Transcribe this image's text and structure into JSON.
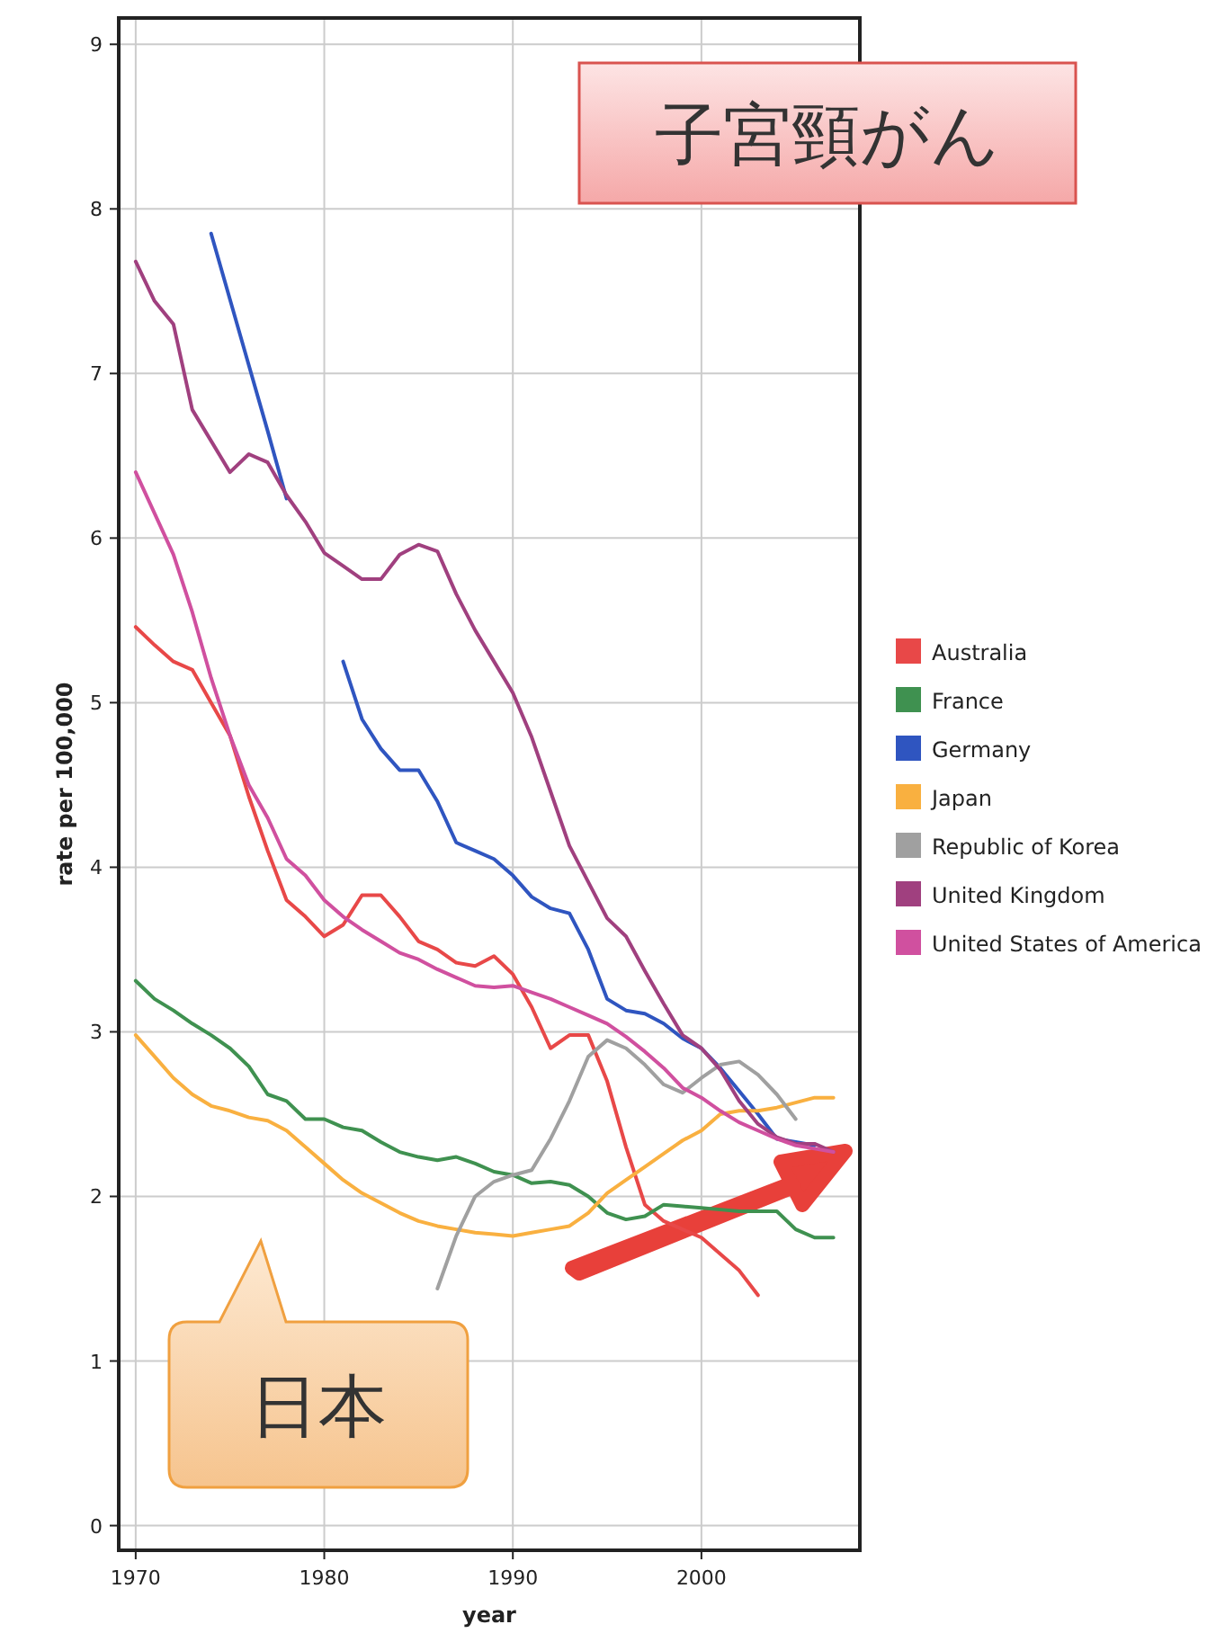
{
  "chart_data": {
    "type": "line",
    "title": "子宮頸がん",
    "xlabel": "year",
    "ylabel": "rate per 100,000",
    "x": [
      1970,
      1971,
      1972,
      1973,
      1974,
      1975,
      1976,
      1977,
      1978,
      1979,
      1980,
      1981,
      1982,
      1983,
      1984,
      1985,
      1986,
      1987,
      1988,
      1989,
      1990,
      1991,
      1992,
      1993,
      1994,
      1995,
      1996,
      1997,
      1998,
      1999,
      2000,
      2001,
      2002,
      2003,
      2004,
      2005,
      2006,
      2007
    ],
    "xlim": [
      1969.1,
      2008.4
    ],
    "xticks": [
      1970,
      1980,
      1990,
      2000
    ],
    "ylim": [
      -0.15,
      9.16
    ],
    "yticks": [
      0,
      1,
      2,
      3,
      4,
      5,
      6,
      7,
      8,
      9
    ],
    "grid": true,
    "legend": "right",
    "line_style": "solid",
    "marker": "none",
    "series": [
      {
        "name": "Australia",
        "color": "#e84848",
        "values": [
          5.46,
          5.35,
          5.25,
          5.2,
          5.0,
          4.8,
          4.43,
          4.1,
          3.8,
          3.7,
          3.58,
          3.65,
          3.83,
          3.83,
          3.7,
          3.55,
          3.5,
          3.42,
          3.4,
          3.46,
          3.35,
          3.15,
          2.9,
          2.98,
          2.98,
          2.7,
          2.3,
          1.95,
          1.85,
          1.8,
          1.75,
          1.65,
          1.55,
          1.4,
          null,
          null,
          null,
          null
        ]
      },
      {
        "name": "France",
        "color": "#3f9150",
        "values": [
          3.31,
          3.2,
          3.13,
          3.05,
          2.98,
          2.9,
          2.79,
          2.62,
          2.58,
          2.47,
          2.47,
          2.42,
          2.4,
          2.33,
          2.27,
          2.24,
          2.22,
          2.24,
          2.2,
          2.15,
          2.13,
          2.08,
          2.09,
          2.07,
          2.0,
          1.9,
          1.86,
          1.88,
          1.95,
          1.94,
          1.93,
          1.92,
          1.91,
          1.91,
          1.91,
          1.8,
          1.75,
          1.75
        ]
      },
      {
        "name": "Germany",
        "color": "#2f55c0",
        "values": [
          null,
          null,
          null,
          null,
          7.85,
          7.45,
          7.05,
          6.65,
          6.24,
          null,
          null,
          5.25,
          4.9,
          4.72,
          4.59,
          4.59,
          4.4,
          4.15,
          4.1,
          4.05,
          3.95,
          3.82,
          3.75,
          3.72,
          3.5,
          3.2,
          3.13,
          3.11,
          3.05,
          2.96,
          2.9,
          2.78,
          2.64,
          2.5,
          2.35,
          2.33,
          2.31,
          null
        ]
      },
      {
        "name": "Japan",
        "color": "#f9b040",
        "values": [
          2.98,
          2.85,
          2.72,
          2.62,
          2.55,
          2.52,
          2.48,
          2.46,
          2.4,
          2.3,
          2.2,
          2.1,
          2.02,
          1.96,
          1.9,
          1.85,
          1.82,
          1.8,
          1.78,
          1.77,
          1.76,
          1.78,
          1.8,
          1.82,
          1.9,
          2.02,
          2.1,
          2.18,
          2.26,
          2.34,
          2.4,
          2.5,
          2.52,
          2.52,
          2.54,
          2.57,
          2.6,
          2.6
        ]
      },
      {
        "name": "Republic of Korea",
        "color": "#a0a0a0",
        "values": [
          null,
          null,
          null,
          null,
          null,
          null,
          null,
          null,
          null,
          null,
          null,
          null,
          null,
          null,
          null,
          null,
          1.44,
          1.76,
          2.0,
          2.09,
          2.13,
          2.16,
          2.35,
          2.58,
          2.85,
          2.95,
          2.9,
          2.8,
          2.68,
          2.63,
          2.72,
          2.8,
          2.82,
          2.74,
          2.62,
          2.47,
          null,
          null
        ]
      },
      {
        "name": "United Kingdom",
        "color": "#a0407f",
        "values": [
          7.68,
          7.44,
          7.3,
          6.78,
          6.59,
          6.4,
          6.51,
          6.46,
          6.26,
          6.1,
          5.91,
          5.83,
          5.75,
          5.75,
          5.9,
          5.96,
          5.92,
          5.66,
          5.44,
          5.25,
          5.06,
          4.79,
          4.46,
          4.13,
          3.91,
          3.69,
          3.58,
          3.37,
          3.17,
          2.98,
          2.9,
          2.77,
          2.58,
          2.44,
          2.36,
          2.32,
          2.32,
          2.27
        ]
      },
      {
        "name": "United States of America",
        "color": "#d0509f",
        "values": [
          6.4,
          6.15,
          5.9,
          5.55,
          5.15,
          4.8,
          4.5,
          4.3,
          4.05,
          3.95,
          3.8,
          3.7,
          3.62,
          3.55,
          3.48,
          3.44,
          3.38,
          3.33,
          3.28,
          3.27,
          3.28,
          3.24,
          3.2,
          3.15,
          3.1,
          3.05,
          2.97,
          2.88,
          2.78,
          2.66,
          2.6,
          2.52,
          2.45,
          2.4,
          2.35,
          2.31,
          2.29,
          2.27
        ]
      }
    ],
    "annotations": [
      "日本"
    ]
  }
}
